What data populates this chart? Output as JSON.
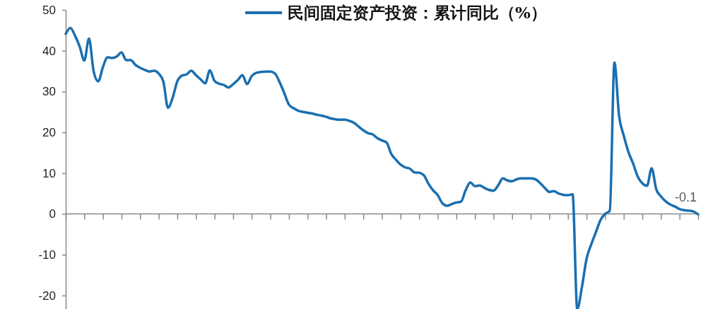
{
  "chart_data": {
    "type": "line",
    "categories": [
      null,
      null,
      null,
      null,
      null,
      null,
      null,
      null,
      null,
      null,
      null,
      null,
      null,
      null,
      null,
      null,
      null,
      null,
      null,
      null,
      null,
      null,
      null,
      null,
      null,
      null,
      null,
      null,
      null,
      null,
      null,
      null,
      null,
      null,
      null,
      null,
      null,
      null,
      null,
      null,
      null,
      null,
      null,
      null,
      null,
      null,
      null,
      null,
      null,
      null,
      null,
      null,
      null,
      null,
      null,
      null,
      null,
      null,
      null,
      null,
      null,
      null,
      null,
      null,
      null,
      null,
      null,
      null,
      null,
      null,
      null,
      null,
      null,
      null,
      null,
      null,
      null,
      null,
      null,
      null,
      null,
      null,
      null,
      null,
      null,
      null,
      null,
      null,
      null,
      null,
      null,
      null,
      null,
      null,
      null,
      null,
      null,
      null,
      null,
      null,
      null,
      null,
      null,
      null,
      null,
      null,
      null,
      null,
      null,
      null,
      null,
      null,
      null,
      null,
      null,
      null,
      null,
      null,
      null,
      null,
      null,
      null,
      null,
      null,
      null,
      null,
      null,
      null,
      null,
      null,
      null,
      null,
      null,
      null,
      null,
      null,
      null
    ],
    "series": [
      {
        "name": "民间固定资产投资：累计同比（%）",
        "color": "#1a6fb0",
        "values": [
          44.1,
          45.6,
          43.7,
          41.0,
          37.6,
          43.0,
          35,
          32.5,
          36,
          38.4,
          38.2,
          38.6,
          39.6,
          37.7,
          37.7,
          36.5,
          35.8,
          35.3,
          34.9,
          35.1,
          34.4,
          32.4,
          26.0,
          28.5,
          32.5,
          33.9,
          34.2,
          35.1,
          34,
          33.0,
          32.0,
          35.2,
          32.6,
          31.9,
          31.6,
          31.0,
          31.8,
          32.8,
          34.0,
          31.8,
          33.8,
          34.6,
          34.8,
          34.9,
          34.9,
          34.4,
          32.3,
          29.6,
          26.8,
          25.9,
          25.3,
          25.0,
          24.8,
          24.6,
          24.3,
          24.1,
          23.8,
          23.4,
          23.2,
          23.1,
          23.1,
          22.8,
          22.3,
          21.4,
          20.5,
          19.8,
          19.5,
          18.6,
          18.0,
          17.5,
          14.7,
          13.3,
          12.1,
          11.4,
          11.1,
          10.2,
          10.1,
          9.5,
          7.4,
          5.8,
          4.6,
          2.6,
          2.0,
          2.4,
          2.8,
          3.0,
          5.8,
          7.7,
          6.8,
          7.0,
          6.4,
          5.9,
          5.7,
          7.0,
          8.7,
          8.2,
          8.0,
          8.5,
          8.7,
          8.7,
          8.7,
          8.5,
          7.6,
          6.4,
          5.4,
          5.6,
          5.0,
          4.7,
          4.6,
          4.8,
          -23.3,
          -18,
          -11,
          -7.5,
          -4.5,
          -1.5,
          0.0,
          0.8,
          37.1,
          24.0,
          19.2,
          15.2,
          12.4,
          9.2,
          7.5,
          6.9,
          11.2,
          6.0,
          4.3,
          3.1,
          2.3,
          1.8,
          1.2,
          0.9,
          0.8,
          0.6,
          -0.1
        ],
        "value_labels": [
          null,
          null,
          null,
          null,
          null,
          null,
          null,
          null,
          null,
          null,
          null,
          null,
          null,
          null,
          null,
          null,
          null,
          null,
          null,
          null,
          null,
          null,
          null,
          null,
          null,
          null,
          null,
          null,
          null,
          null,
          null,
          null,
          null,
          null,
          null,
          null,
          null,
          null,
          null,
          null,
          null,
          null,
          null,
          null,
          null,
          null,
          null,
          null,
          null,
          null,
          null,
          null,
          null,
          null,
          null,
          null,
          null,
          null,
          null,
          null,
          null,
          null,
          null,
          null,
          null,
          null,
          null,
          null,
          null,
          null,
          null,
          null,
          null,
          null,
          null,
          null,
          null,
          null,
          null,
          null,
          null,
          null,
          null,
          null,
          null,
          null,
          null,
          null,
          null,
          null,
          null,
          null,
          null,
          null,
          null,
          null,
          null,
          null,
          null,
          null,
          null,
          null,
          null,
          null,
          null,
          null,
          null,
          null,
          null,
          null,
          null,
          null,
          null,
          null,
          null,
          null,
          null,
          null,
          null,
          null,
          null,
          null,
          null,
          null,
          null,
          null,
          null,
          null,
          null,
          null,
          null,
          null,
          null,
          null,
          null,
          null,
          "-0.1"
        ]
      }
    ],
    "ylim": [
      -23.3,
      50
    ],
    "yticks": [
      -20,
      -10,
      0,
      10,
      20,
      30,
      40,
      50
    ],
    "legend": "top",
    "marker": "none",
    "line_style": "solid"
  }
}
